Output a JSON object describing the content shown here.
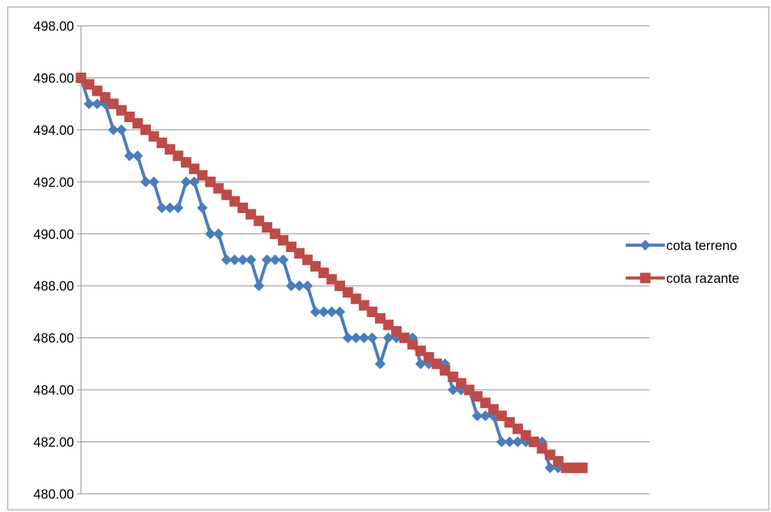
{
  "chart_data": {
    "type": "line",
    "title": "",
    "xlabel": "",
    "ylabel": "",
    "ylim": [
      480,
      498
    ],
    "yticks": [
      "480.00",
      "482.00",
      "484.00",
      "486.00",
      "488.00",
      "490.00",
      "492.00",
      "494.00",
      "496.00",
      "498.00"
    ],
    "grid": {
      "horizontal": true,
      "vertical": false
    },
    "legend_position": "right",
    "x": [
      1,
      2,
      3,
      4,
      5,
      6,
      7,
      8,
      9,
      10,
      11,
      12,
      13,
      14,
      15,
      16,
      17,
      18,
      19,
      20,
      21,
      22,
      23,
      24,
      25,
      26,
      27,
      28,
      29,
      30,
      31,
      32,
      33,
      34,
      35,
      36,
      37,
      38,
      39,
      40,
      41,
      42,
      43,
      44,
      45,
      46,
      47,
      48,
      49,
      50,
      51,
      52,
      53,
      54,
      55,
      56,
      57,
      58,
      59,
      60,
      61,
      62,
      63
    ],
    "series": [
      {
        "name": "cota terreno",
        "color": "#4a7ebb",
        "marker": "diamond",
        "values": [
          496,
          495,
          495,
          495,
          494,
          494,
          493,
          493,
          492,
          492,
          491,
          491,
          491,
          492,
          492,
          491,
          490,
          490,
          489,
          489,
          489,
          489,
          488,
          489,
          489,
          489,
          488,
          488,
          488,
          487,
          487,
          487,
          487,
          486,
          486,
          486,
          486,
          485,
          486,
          486,
          486,
          486,
          485,
          485,
          485,
          485,
          484,
          484,
          484,
          483,
          483,
          483,
          482,
          482,
          482,
          482,
          482,
          482,
          481,
          481,
          481,
          481,
          481
        ]
      },
      {
        "name": "cota razante",
        "color": "#be4b48",
        "marker": "square",
        "values": [
          496,
          495.75,
          495.5,
          495.25,
          495,
          494.75,
          494.5,
          494.25,
          494,
          493.75,
          493.5,
          493.25,
          493,
          492.75,
          492.5,
          492.25,
          492,
          491.75,
          491.5,
          491.25,
          491,
          490.75,
          490.5,
          490.25,
          490,
          489.75,
          489.5,
          489.25,
          489,
          488.75,
          488.5,
          488.25,
          488,
          487.75,
          487.5,
          487.25,
          487,
          486.75,
          486.5,
          486.25,
          486,
          485.75,
          485.5,
          485.25,
          485,
          484.75,
          484.5,
          484.25,
          484,
          483.75,
          483.5,
          483.25,
          483,
          482.75,
          482.5,
          482.25,
          482,
          481.75,
          481.5,
          481.25,
          481,
          481,
          481
        ]
      }
    ]
  }
}
